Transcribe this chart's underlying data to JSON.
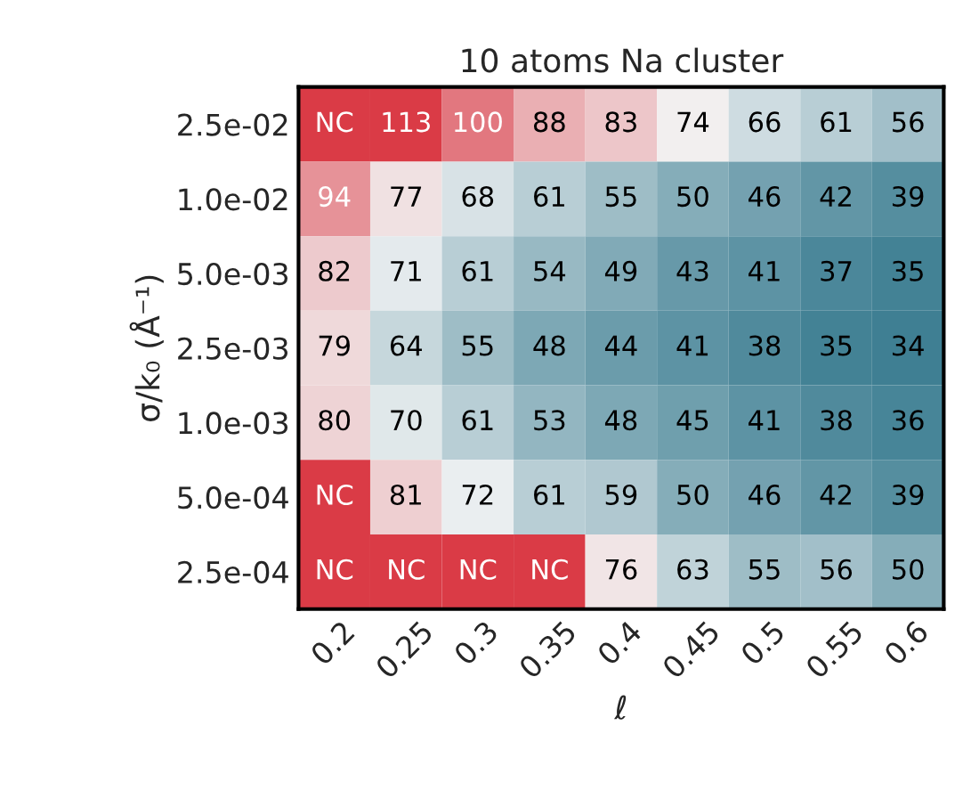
{
  "chart_data": {
    "type": "heatmap",
    "title": "10 atoms Na cluster",
    "xlabel": "ℓ",
    "ylabel": "σ/k₀ (Å⁻¹)",
    "data_labels": true,
    "categories": [
      "0.2",
      "0.25",
      "0.3",
      "0.35",
      "0.4",
      "0.45",
      "0.5",
      "0.55",
      "0.6"
    ],
    "y_categories": [
      "2.5e-02",
      "1.0e-02",
      "5.0e-03",
      "2.5e-03",
      "1.0e-03",
      "5.0e-04",
      "2.5e-04"
    ],
    "cells": [
      [
        null,
        113,
        100,
        88,
        83,
        74,
        66,
        61,
        56
      ],
      [
        94,
        77,
        68,
        61,
        55,
        50,
        46,
        42,
        39
      ],
      [
        82,
        71,
        61,
        54,
        49,
        43,
        41,
        37,
        35
      ],
      [
        79,
        64,
        55,
        48,
        44,
        41,
        38,
        35,
        34
      ],
      [
        80,
        70,
        61,
        53,
        48,
        45,
        41,
        38,
        36
      ],
      [
        null,
        81,
        72,
        61,
        59,
        50,
        46,
        42,
        39
      ],
      [
        null,
        null,
        null,
        null,
        76,
        63,
        55,
        56,
        50
      ]
    ],
    "cell_labels": [
      [
        "NC",
        "113",
        "100",
        "88",
        "83",
        "74",
        "66",
        "61",
        "56"
      ],
      [
        "94",
        "77",
        "68",
        "61",
        "55",
        "50",
        "46",
        "42",
        "39"
      ],
      [
        "82",
        "71",
        "61",
        "54",
        "49",
        "43",
        "41",
        "37",
        "35"
      ],
      [
        "79",
        "64",
        "55",
        "48",
        "44",
        "41",
        "38",
        "35",
        "34"
      ],
      [
        "80",
        "70",
        "61",
        "53",
        "48",
        "45",
        "41",
        "38",
        "36"
      ],
      [
        "NC",
        "81",
        "72",
        "61",
        "59",
        "50",
        "46",
        "42",
        "39"
      ],
      [
        "NC",
        "NC",
        "NC",
        "NC",
        "76",
        "63",
        "55",
        "56",
        "50"
      ]
    ],
    "grid": false
  }
}
